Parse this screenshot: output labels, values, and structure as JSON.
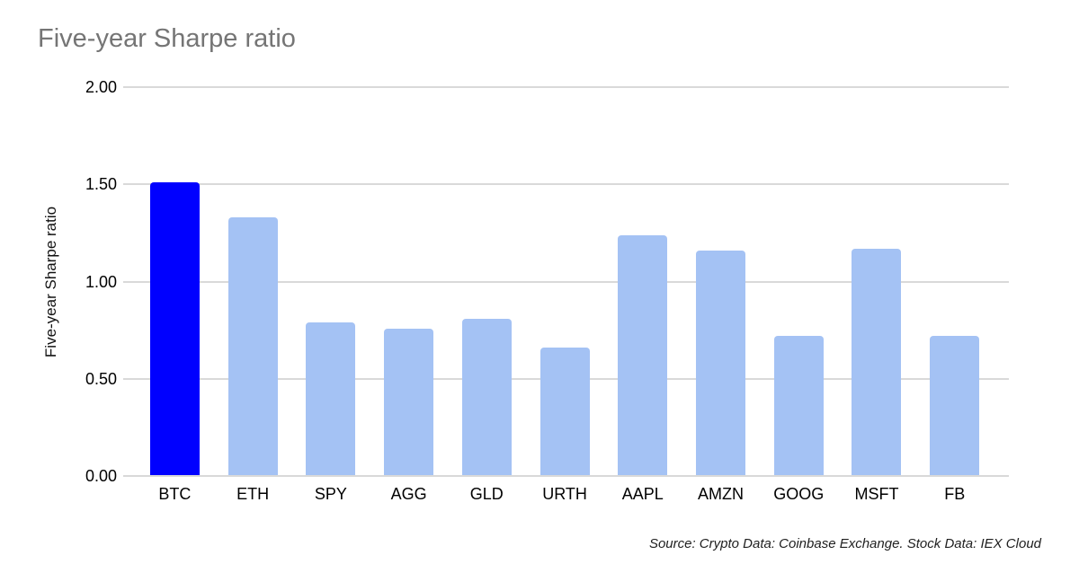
{
  "chart_data": {
    "type": "bar",
    "title": "Five-year Sharpe ratio",
    "xlabel": "",
    "ylabel": "Five-year Sharpe ratio",
    "categories": [
      "BTC",
      "ETH",
      "SPY",
      "AGG",
      "GLD",
      "URTH",
      "AAPL",
      "AMZN",
      "GOOG",
      "MSFT",
      "FB"
    ],
    "values": [
      1.51,
      1.33,
      0.79,
      0.76,
      0.81,
      0.66,
      1.24,
      1.16,
      0.72,
      1.17,
      0.72
    ],
    "ylim": [
      0,
      2
    ],
    "yticks": [
      0,
      0.5,
      1,
      1.5,
      2
    ],
    "ytick_labels": [
      "0.00",
      "0.50",
      "1.00",
      "1.50",
      "2.00"
    ],
    "grid": "horizontal-only",
    "legend": "none",
    "highlight_category": "BTC",
    "source": "Source: Crypto Data: Coinbase Exchange. Stock Data: IEX Cloud",
    "colors": {
      "highlight_bar": "#0000ff",
      "bar": "#a4c2f4",
      "gridline": "#d9d9d9",
      "title_text": "#757575",
      "axis_text": "#000000",
      "source_text": "#1f1f1f",
      "background": "#ffffff"
    }
  }
}
